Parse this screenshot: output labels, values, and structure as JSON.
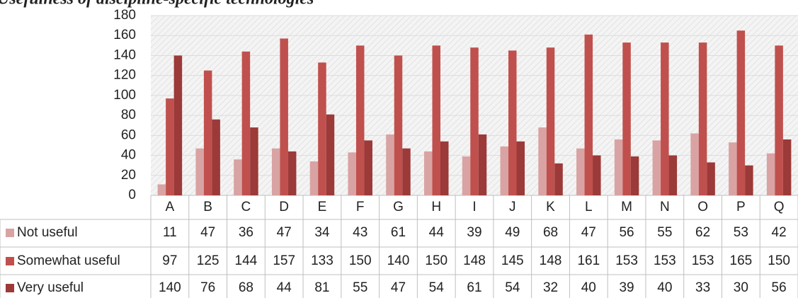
{
  "chart_data": {
    "type": "bar",
    "title": "Usefulness of discipline-specific technologies",
    "categories": [
      "A",
      "B",
      "C",
      "D",
      "E",
      "F",
      "G",
      "H",
      "I",
      "J",
      "K",
      "L",
      "M",
      "N",
      "O",
      "P",
      "Q"
    ],
    "series": [
      {
        "name": "Not useful",
        "color": "#d9a3a3",
        "values": [
          11,
          47,
          36,
          47,
          34,
          43,
          61,
          44,
          39,
          49,
          68,
          47,
          56,
          55,
          62,
          53,
          42
        ]
      },
      {
        "name": "Somewhat useful",
        "color": "#c0504d",
        "values": [
          97,
          125,
          144,
          157,
          133,
          150,
          140,
          150,
          148,
          145,
          148,
          161,
          153,
          153,
          153,
          165,
          150
        ]
      },
      {
        "name": "Very useful",
        "color": "#9b3a38",
        "values": [
          140,
          76,
          68,
          44,
          81,
          55,
          47,
          54,
          61,
          54,
          32,
          40,
          39,
          40,
          33,
          30,
          56
        ]
      }
    ],
    "ylim": [
      0,
      180
    ],
    "yticks": [
      0,
      20,
      40,
      60,
      80,
      100,
      120,
      140,
      160,
      180
    ],
    "grid": true
  }
}
